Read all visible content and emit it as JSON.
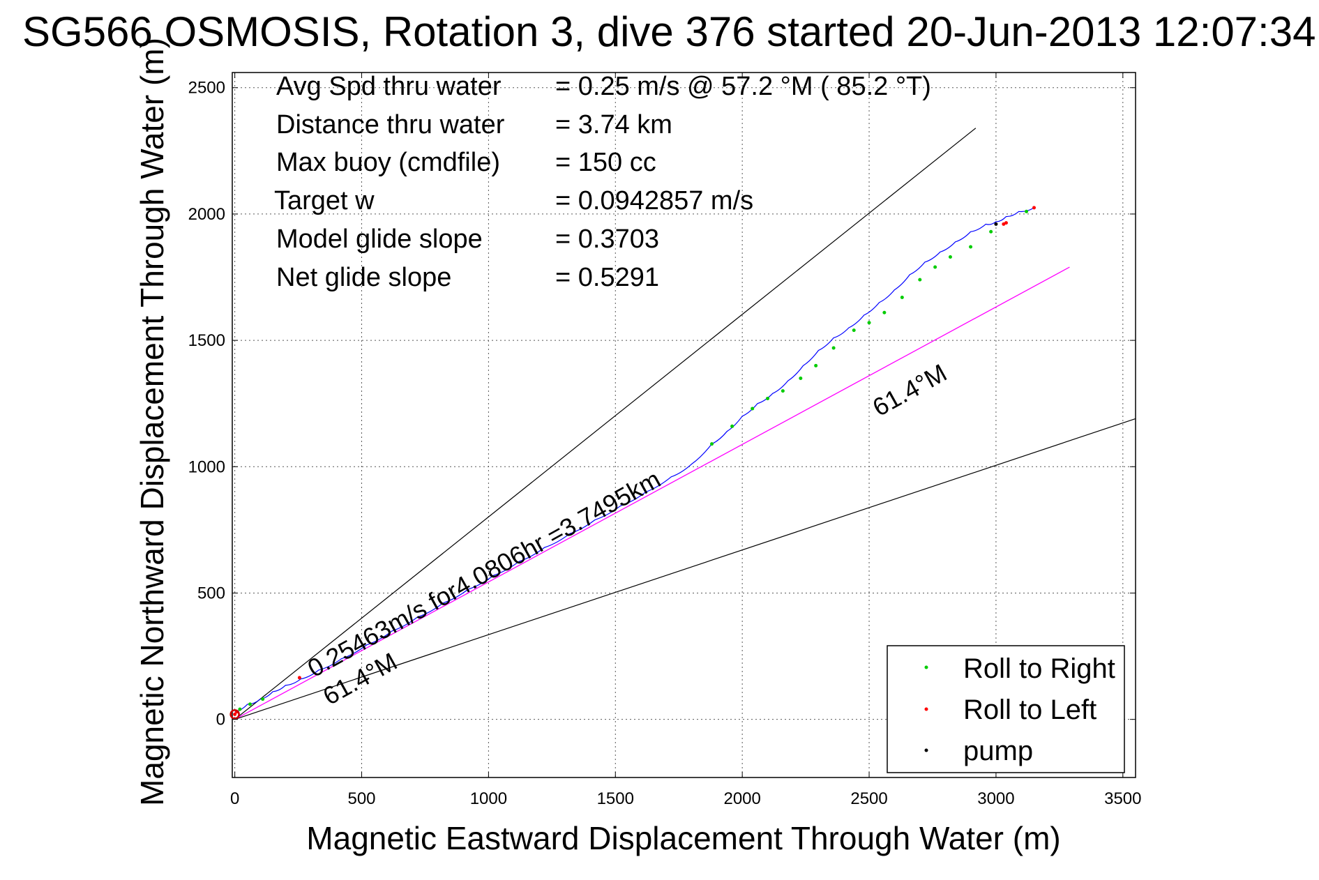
{
  "chart_data": {
    "type": "line",
    "title": "SG566 OSMOSIS, Rotation 3, dive 376 started 20-Jun-2013 12:07:34",
    "xlabel": "Magnetic Eastward Displacement Through Water (m)",
    "ylabel": "Magnetic Northward Displacement Through Water (m)",
    "xlim": [
      -10,
      3550
    ],
    "ylim": [
      -230,
      2560
    ],
    "xticks": [
      0,
      500,
      1000,
      1500,
      2000,
      2500,
      3000,
      3500
    ],
    "yticks": [
      0,
      500,
      1000,
      1500,
      2000,
      2500
    ],
    "xtick_labels": [
      "0",
      "500",
      "1000",
      "1500",
      "2000",
      "2500",
      "3000",
      "3500"
    ],
    "ytick_labels": [
      "0",
      "500",
      "1000",
      "1500",
      "2000",
      "2500"
    ],
    "grid": true,
    "info_lines": [
      {
        "label": "Avg Spd thru water",
        "value": "=  0.25 m/s @  57.2 °M ( 85.2 °T)"
      },
      {
        "label": "Distance thru water",
        "value": "=  3.74 km"
      },
      {
        "label": "Max buoy (cmdfile)",
        "value": "= 150 cc"
      },
      {
        "label": "Target w",
        "value": "= 0.0942857 m/s"
      },
      {
        "label": "Model glide slope",
        "value": "= 0.3703"
      },
      {
        "label": "Net glide slope",
        "value": "= 0.5291"
      }
    ],
    "annotations": {
      "track_speed": "0.25463m/s for4.0806hr =3.7495km",
      "heading_upper": "61.4°M",
      "heading_lower": "61.4°M"
    },
    "glide_slope_lines": [
      {
        "name": "upper bound",
        "x": [
          0,
          2920
        ],
        "y": [
          0,
          2340
        ],
        "color": "#000000"
      },
      {
        "name": "lower bound",
        "x": [
          0,
          3550
        ],
        "y": [
          0,
          1190
        ],
        "color": "#000000"
      }
    ],
    "heading_line": {
      "x": [
        0,
        3290
      ],
      "y": [
        0,
        1790
      ],
      "color": "#ff00ff"
    },
    "series": [
      {
        "name": "track",
        "color": "#0000ff",
        "x": [
          0,
          50,
          100,
          150,
          200,
          260,
          330,
          420,
          520,
          620,
          720,
          820,
          920,
          1020,
          1120,
          1220,
          1320,
          1420,
          1520,
          1620,
          1720,
          1800,
          1880,
          1940,
          2000,
          2060,
          2120,
          2180,
          2240,
          2300,
          2360,
          2420,
          2480,
          2540,
          2600,
          2660,
          2720,
          2780,
          2840,
          2900,
          2960,
          3000,
          3040,
          3090,
          3150
        ],
        "y": [
          30,
          60,
          80,
          110,
          135,
          160,
          195,
          240,
          295,
          350,
          405,
          460,
          515,
          570,
          625,
          680,
          735,
          790,
          845,
          900,
          960,
          1010,
          1090,
          1140,
          1200,
          1250,
          1290,
          1340,
          1400,
          1460,
          1510,
          1550,
          1600,
          1650,
          1700,
          1760,
          1810,
          1850,
          1890,
          1930,
          1960,
          1970,
          1990,
          2010,
          2025
        ]
      },
      {
        "name": "Roll to Right",
        "color": "#00cc00",
        "x": [
          20,
          60,
          110,
          1880,
          1960,
          2040,
          2100,
          2160,
          2230,
          2290,
          2360,
          2440,
          2500,
          2560,
          2630,
          2700,
          2760,
          2820,
          2900,
          2980,
          3120
        ],
        "y": [
          40,
          60,
          80,
          1090,
          1160,
          1230,
          1270,
          1300,
          1350,
          1400,
          1470,
          1540,
          1570,
          1610,
          1670,
          1740,
          1790,
          1830,
          1870,
          1930,
          2010
        ]
      },
      {
        "name": "Roll to Left",
        "color": "#ff0000",
        "x": [
          0,
          8,
          255,
          3030,
          3040,
          3150
        ],
        "y": [
          20,
          30,
          165,
          1960,
          1965,
          2025
        ]
      },
      {
        "name": "pump",
        "color": "#000000",
        "x": [
          3000
        ],
        "y": [
          1960
        ]
      }
    ],
    "legend": {
      "placement": "bottom-right",
      "entries": [
        "Roll to Right",
        "Roll to Left",
        "pump"
      ]
    }
  }
}
